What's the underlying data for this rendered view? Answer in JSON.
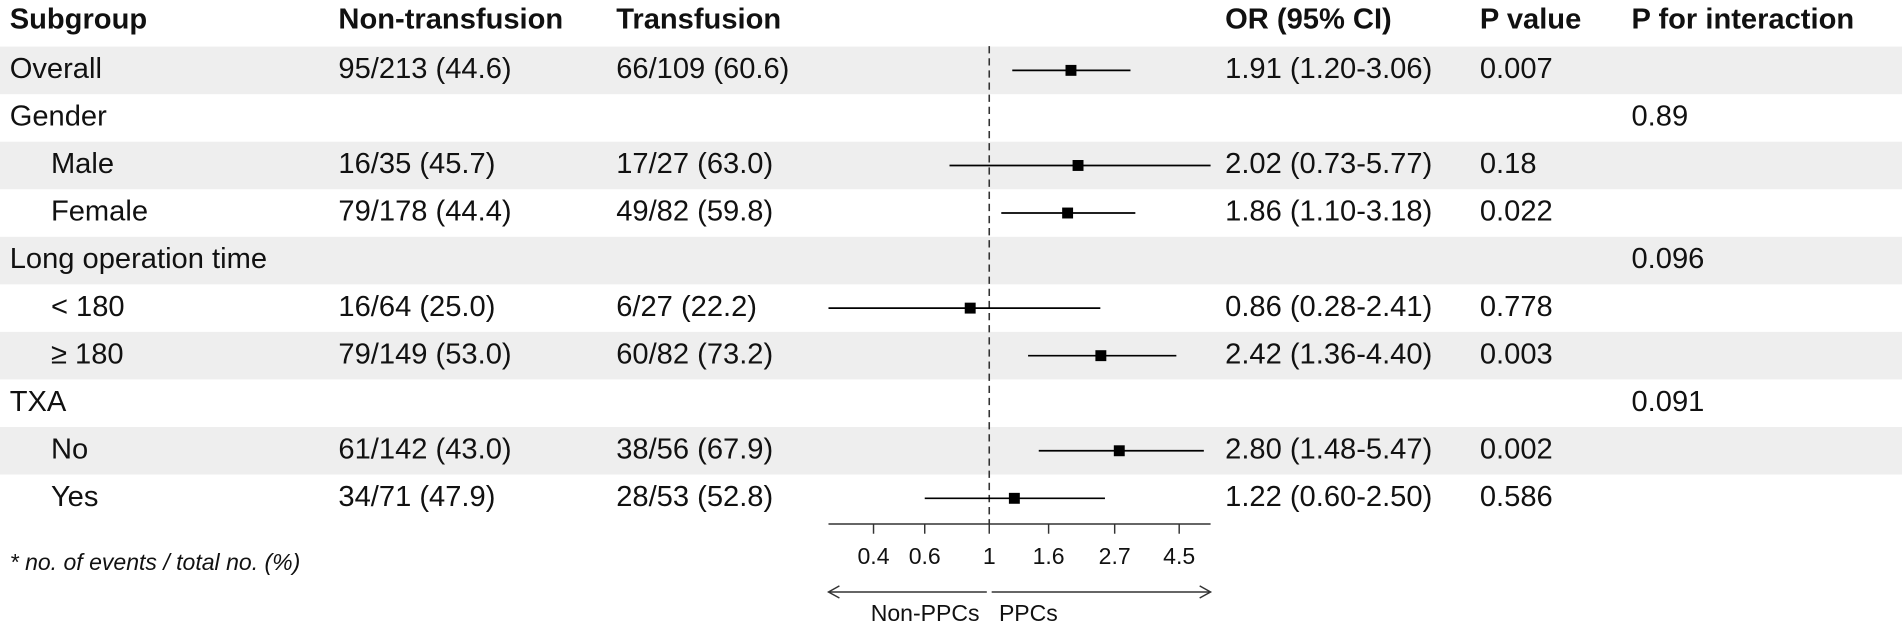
{
  "chart_data": {
    "type": "forest",
    "columns": [
      "Subgroup",
      "Non-transfusion",
      "Transfusion",
      "OR (95% CI)",
      "P value",
      "P for interaction"
    ],
    "groups": [
      {
        "name": "Overall",
        "non_transfusion": "95/213 (44.6)",
        "transfusion": "66/109 (60.6)",
        "or": 1.91,
        "lo": 1.2,
        "hi": 3.06,
        "ci_label": "1.91 (1.20-3.06)",
        "p": 0.007
      },
      {
        "name": "Gender",
        "p_interaction": 0.89,
        "subgroups": [
          {
            "name": "Male",
            "non_transfusion": "16/35 (45.7)",
            "transfusion": "17/27 (63.0)",
            "or": 2.02,
            "lo": 0.73,
            "hi": 5.77,
            "ci_label": "2.02 (0.73-5.77)",
            "p": 0.18
          },
          {
            "name": "Female",
            "non_transfusion": "79/178 (44.4)",
            "transfusion": "49/82 (59.8)",
            "or": 1.86,
            "lo": 1.1,
            "hi": 3.18,
            "ci_label": "1.86 (1.10-3.18)",
            "p": 0.022
          }
        ]
      },
      {
        "name": "Long operation time",
        "p_interaction": 0.096,
        "subgroups": [
          {
            "name": "< 180",
            "non_transfusion": "16/64 (25.0)",
            "transfusion": "6/27 (22.2)",
            "or": 0.86,
            "lo": 0.28,
            "hi": 2.41,
            "ci_label": "0.86 (0.28-2.41)",
            "p": 0.778
          },
          {
            "name": "≥ 180",
            "non_transfusion": "79/149 (53.0)",
            "transfusion": "60/82 (73.2)",
            "or": 2.42,
            "lo": 1.36,
            "hi": 4.4,
            "ci_label": "2.42 (1.36-4.40)",
            "p": 0.003
          }
        ]
      },
      {
        "name": "TXA",
        "p_interaction": 0.091,
        "subgroups": [
          {
            "name": "No",
            "non_transfusion": "61/142 (43.0)",
            "transfusion": "38/56 (67.9)",
            "or": 2.8,
            "lo": 1.48,
            "hi": 5.47,
            "ci_label": "2.80 (1.48-5.47)",
            "p": 0.002
          },
          {
            "name": "Yes",
            "non_transfusion": "34/71 (47.9)",
            "transfusion": "28/53 (52.8)",
            "or": 1.22,
            "lo": 0.6,
            "hi": 2.5,
            "ci_label": "1.22 (0.60-2.50)",
            "p": 0.586
          }
        ]
      }
    ],
    "xscale": "log",
    "xlim": [
      0.28,
      5.77
    ],
    "xticks": [
      0.4,
      0.6,
      1,
      1.6,
      2.7,
      4.5
    ],
    "reference": 1,
    "arrow_labels": [
      "Non-PPCs",
      "PPCs"
    ],
    "footnote": "* no. of events / total no. (%)"
  }
}
